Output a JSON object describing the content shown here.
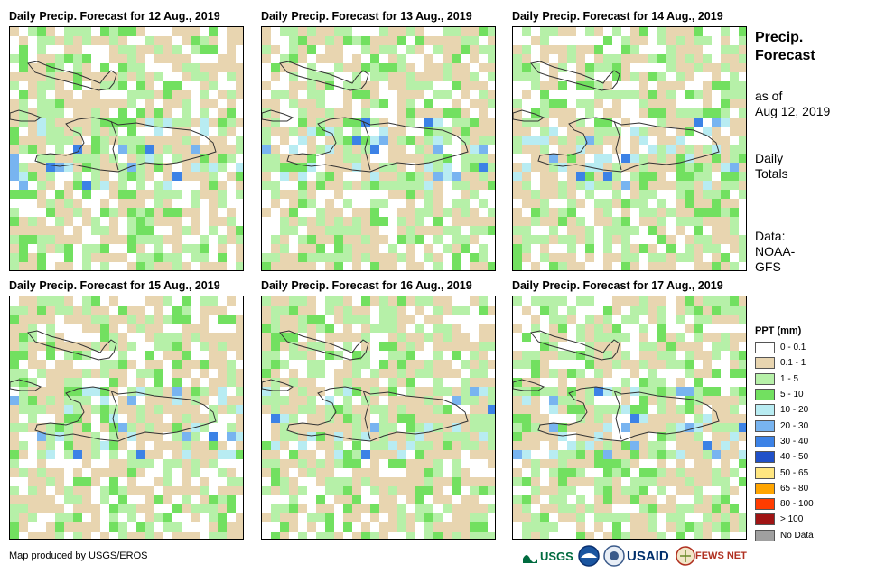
{
  "panels": [
    {
      "title": "Daily Precip. Forecast for 12 Aug., 2019",
      "seed": 12
    },
    {
      "title": "Daily Precip. Forecast for 13 Aug., 2019",
      "seed": 13
    },
    {
      "title": "Daily Precip. Forecast for 14 Aug., 2019",
      "seed": 14
    },
    {
      "title": "Daily Precip. Forecast for 15 Aug., 2019",
      "seed": 15
    },
    {
      "title": "Daily Precip. Forecast for 16 Aug., 2019",
      "seed": 16
    },
    {
      "title": "Daily Precip. Forecast for 17 Aug., 2019",
      "seed": 17
    }
  ],
  "side": {
    "title_line1": "Precip.",
    "title_line2": "Forecast",
    "asof_line1": "as of",
    "asof_line2": "Aug 12, 2019",
    "totals_line1": "Daily",
    "totals_line2": "Totals",
    "data_line1": "Data:",
    "data_line2": "NOAA-",
    "data_line3": "GFS"
  },
  "legend": {
    "title": "PPT (mm)",
    "items": [
      {
        "label": "0 - 0.1",
        "color": "#ffffff"
      },
      {
        "label": "0.1 - 1",
        "color": "#e8d5b0"
      },
      {
        "label": "1 - 5",
        "color": "#b6f0a8"
      },
      {
        "label": "5 - 10",
        "color": "#72e060"
      },
      {
        "label": "10 - 20",
        "color": "#b8ecf2"
      },
      {
        "label": "20 - 30",
        "color": "#78b4f0"
      },
      {
        "label": "30 - 40",
        "color": "#3c82e6"
      },
      {
        "label": "40 - 50",
        "color": "#2050c8"
      },
      {
        "label": "50 - 65",
        "color": "#ffe680"
      },
      {
        "label": "65 - 80",
        "color": "#ffa500"
      },
      {
        "label": "80 - 100",
        "color": "#ff3c00"
      },
      {
        "label": "> 100",
        "color": "#a01414"
      },
      {
        "label": "No Data",
        "color": "#a0a0a0"
      }
    ]
  },
  "footer": {
    "credit": "Map produced by USGS/EROS",
    "logos": [
      "USGS",
      "NOAA",
      "USAID",
      "FEWS NET"
    ]
  }
}
